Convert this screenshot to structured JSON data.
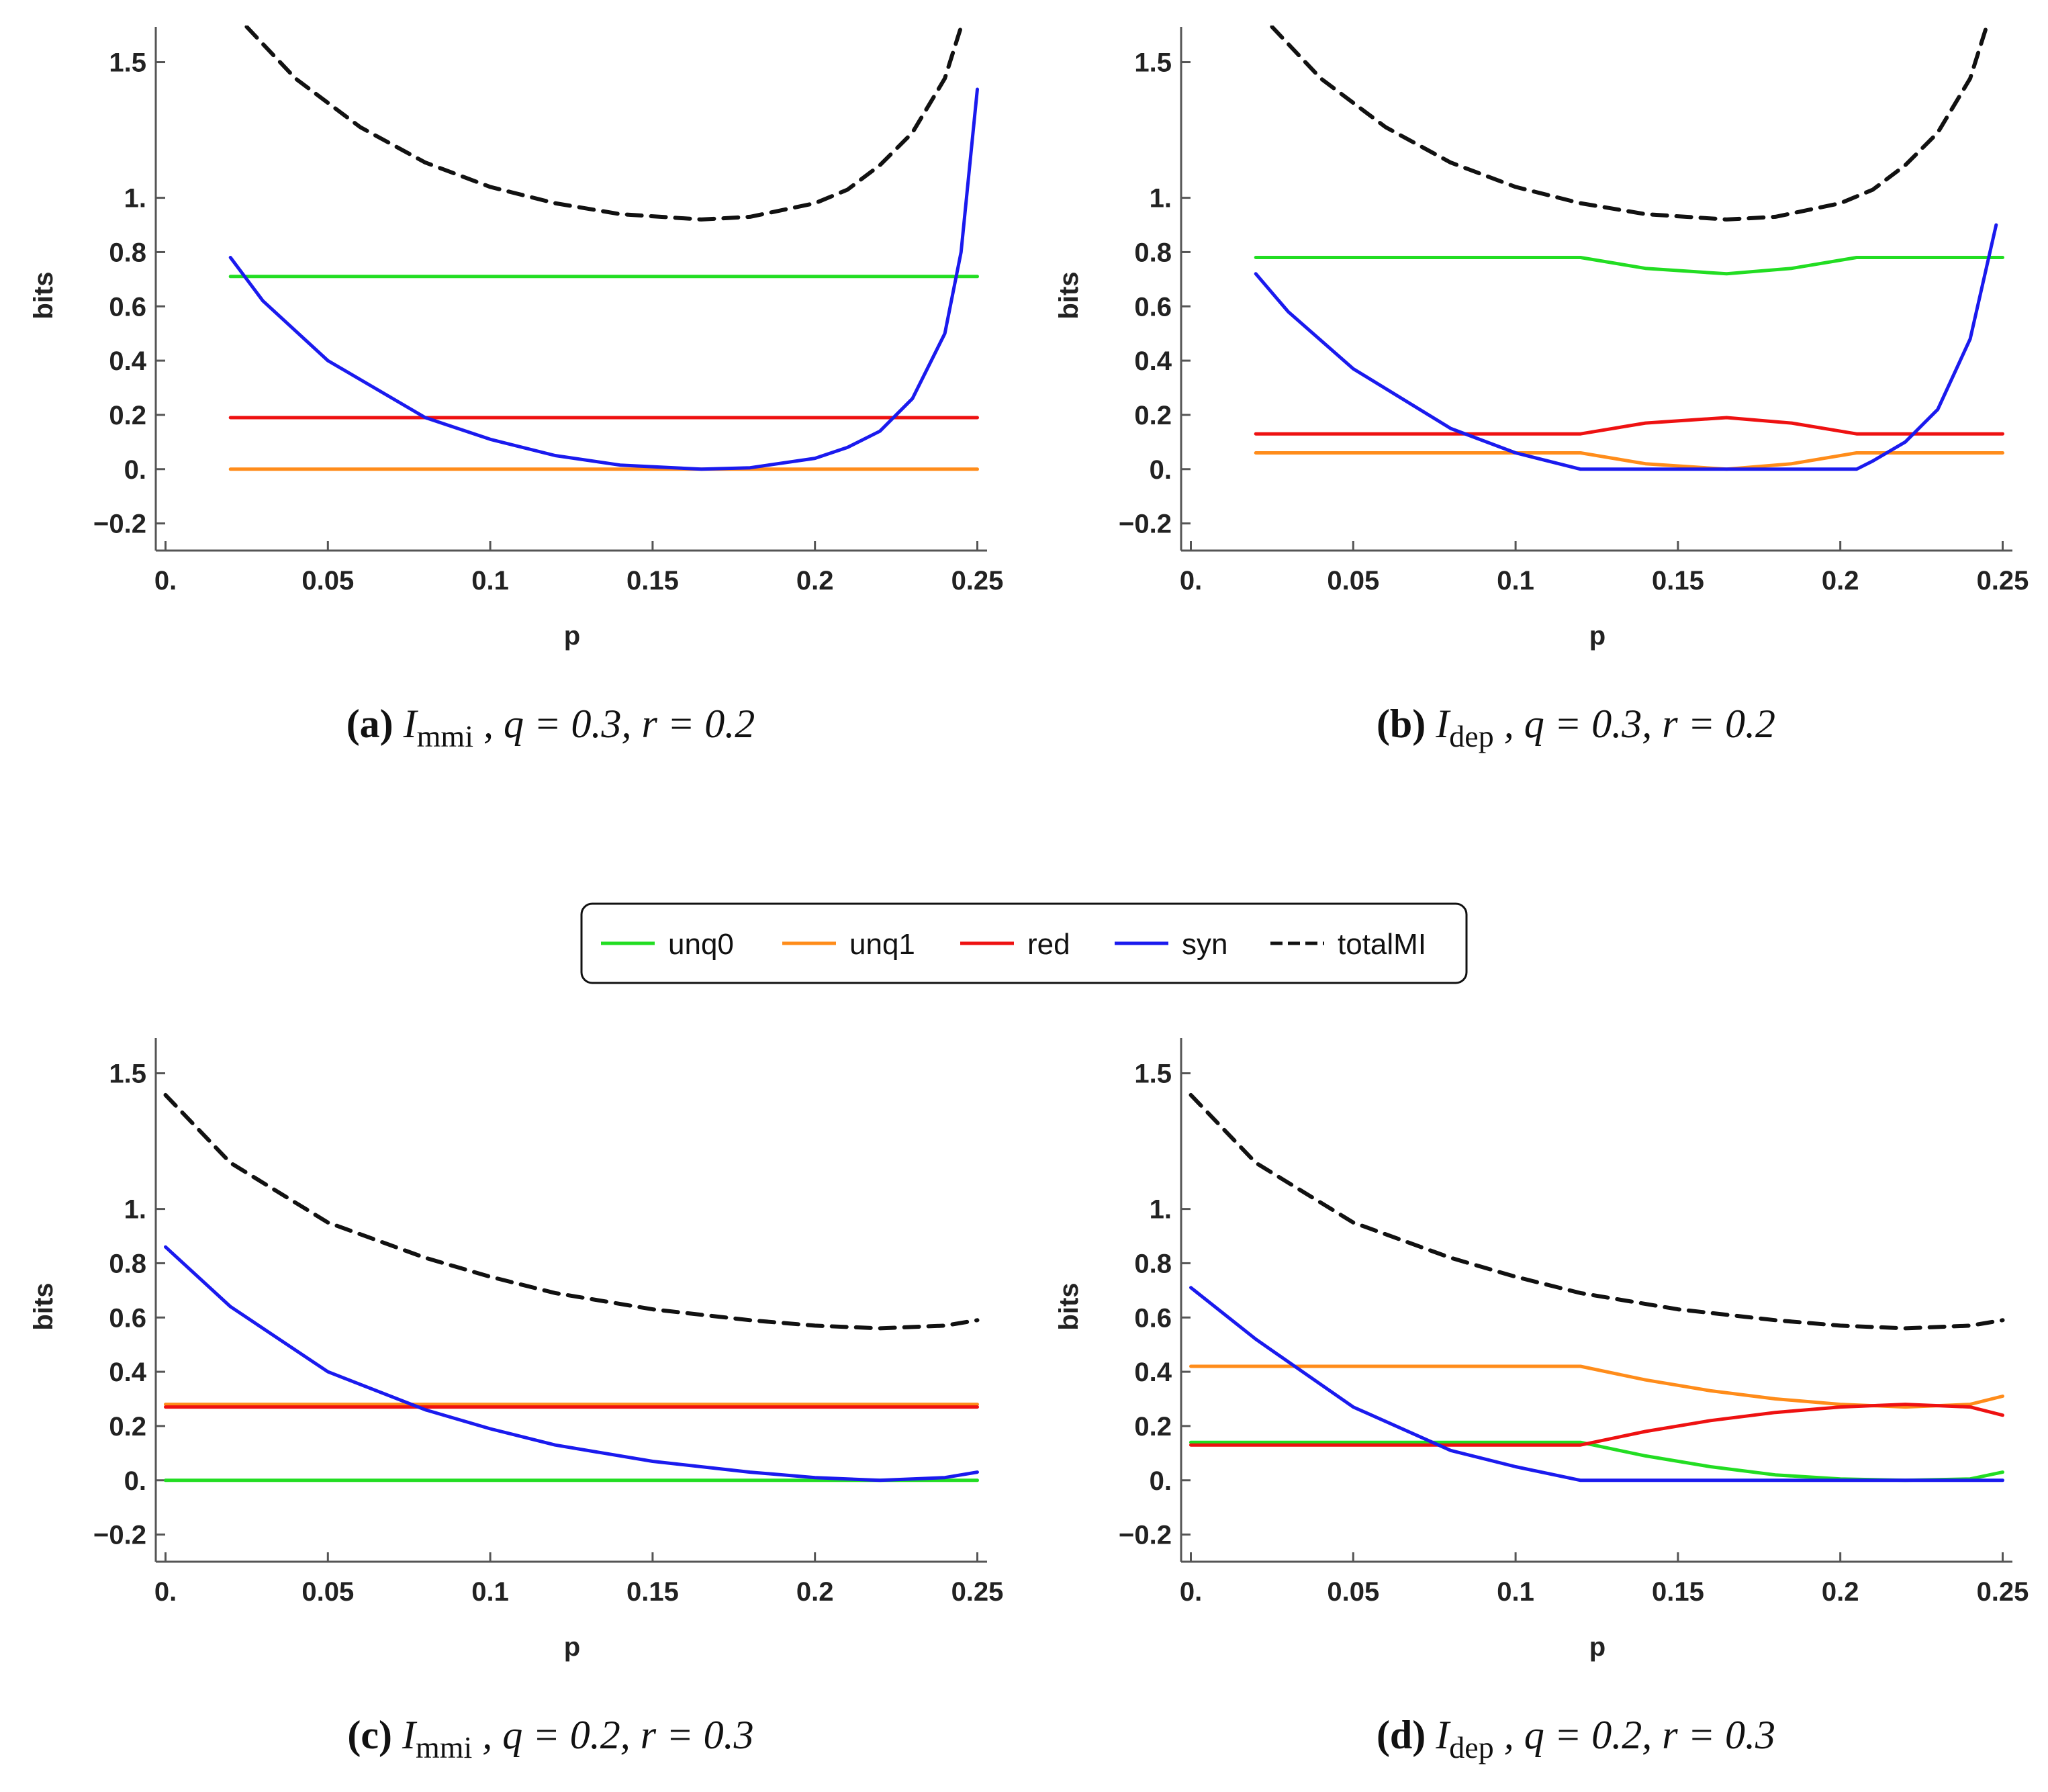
{
  "legend": [
    {
      "key": "unq0",
      "label": "unq0",
      "color": "#22dd22",
      "dash": false
    },
    {
      "key": "unq1",
      "label": "unq1",
      "color": "#ff8c1a",
      "dash": false
    },
    {
      "key": "red",
      "label": "red",
      "color": "#ee1111",
      "dash": false
    },
    {
      "key": "syn",
      "label": "syn",
      "color": "#1a1aee",
      "dash": false
    },
    {
      "key": "totalMI",
      "label": "totalMI",
      "color": "#111111",
      "dash": true
    }
  ],
  "chart_data": [
    {
      "id": "a",
      "type": "line",
      "caption": {
        "letter": "(a)",
        "measure": "I",
        "sub": "mmi",
        "params": " , q = 0.3, r = 0.2"
      },
      "xlabel": "p",
      "ylabel": "bits",
      "xlim": [
        -0.003,
        0.253
      ],
      "ylim": [
        -0.3,
        1.63
      ],
      "xticks": [
        {
          "v": 0,
          "label": "0."
        },
        {
          "v": 0.05,
          "label": "0.05"
        },
        {
          "v": 0.1,
          "label": "0.1"
        },
        {
          "v": 0.15,
          "label": "0.15"
        },
        {
          "v": 0.2,
          "label": "0.2"
        },
        {
          "v": 0.25,
          "label": "0.25"
        }
      ],
      "yticks": [
        {
          "v": -0.2,
          "label": "−0.2"
        },
        {
          "v": 0,
          "label": "0."
        },
        {
          "v": 0.2,
          "label": "0.2"
        },
        {
          "v": 0.4,
          "label": "0.4"
        },
        {
          "v": 0.6,
          "label": "0.6"
        },
        {
          "v": 0.8,
          "label": "0.8"
        },
        {
          "v": 1.0,
          "label": "1."
        },
        {
          "v": 1.5,
          "label": "1.5"
        }
      ],
      "series": [
        {
          "name": "unq0",
          "x": [
            0.02,
            0.25
          ],
          "y": [
            0.71,
            0.71
          ]
        },
        {
          "name": "unq1",
          "x": [
            0.02,
            0.25
          ],
          "y": [
            0.0,
            0.0
          ]
        },
        {
          "name": "red",
          "x": [
            0.02,
            0.25
          ],
          "y": [
            0.19,
            0.19
          ]
        },
        {
          "name": "syn",
          "x": [
            0.02,
            0.03,
            0.05,
            0.08,
            0.1,
            0.12,
            0.14,
            0.165,
            0.18,
            0.2,
            0.21,
            0.22,
            0.23,
            0.24,
            0.245,
            0.25
          ],
          "y": [
            0.78,
            0.62,
            0.4,
            0.19,
            0.11,
            0.05,
            0.015,
            0.0,
            0.005,
            0.04,
            0.08,
            0.14,
            0.26,
            0.5,
            0.8,
            1.4
          ]
        },
        {
          "name": "totalMI",
          "x": [
            0.025,
            0.04,
            0.06,
            0.08,
            0.1,
            0.12,
            0.14,
            0.165,
            0.18,
            0.2,
            0.21,
            0.22,
            0.23,
            0.24,
            0.245
          ],
          "y": [
            1.63,
            1.44,
            1.26,
            1.13,
            1.04,
            0.98,
            0.94,
            0.92,
            0.93,
            0.98,
            1.03,
            1.12,
            1.24,
            1.44,
            1.63
          ]
        }
      ]
    },
    {
      "id": "b",
      "type": "line",
      "caption": {
        "letter": "(b)",
        "measure": "I",
        "sub": "dep",
        "params": " , q = 0.3, r = 0.2"
      },
      "xlabel": "p",
      "ylabel": "bits",
      "xlim": [
        -0.003,
        0.253
      ],
      "ylim": [
        -0.3,
        1.63
      ],
      "xticks": [
        {
          "v": 0,
          "label": "0."
        },
        {
          "v": 0.05,
          "label": "0.05"
        },
        {
          "v": 0.1,
          "label": "0.1"
        },
        {
          "v": 0.15,
          "label": "0.15"
        },
        {
          "v": 0.2,
          "label": "0.2"
        },
        {
          "v": 0.25,
          "label": "0.25"
        }
      ],
      "yticks": [
        {
          "v": -0.2,
          "label": "−0.2"
        },
        {
          "v": 0,
          "label": "0."
        },
        {
          "v": 0.2,
          "label": "0.2"
        },
        {
          "v": 0.4,
          "label": "0.4"
        },
        {
          "v": 0.6,
          "label": "0.6"
        },
        {
          "v": 0.8,
          "label": "0.8"
        },
        {
          "v": 1.0,
          "label": "1."
        },
        {
          "v": 1.5,
          "label": "1.5"
        }
      ],
      "series": [
        {
          "name": "unq0",
          "x": [
            0.02,
            0.12,
            0.14,
            0.165,
            0.185,
            0.205,
            0.25
          ],
          "y": [
            0.78,
            0.78,
            0.74,
            0.72,
            0.74,
            0.78,
            0.78
          ]
        },
        {
          "name": "unq1",
          "x": [
            0.02,
            0.12,
            0.14,
            0.165,
            0.185,
            0.205,
            0.25
          ],
          "y": [
            0.06,
            0.06,
            0.02,
            0.0,
            0.02,
            0.06,
            0.06
          ]
        },
        {
          "name": "red",
          "x": [
            0.02,
            0.12,
            0.14,
            0.165,
            0.185,
            0.205,
            0.25
          ],
          "y": [
            0.13,
            0.13,
            0.17,
            0.19,
            0.17,
            0.13,
            0.13
          ]
        },
        {
          "name": "syn",
          "x": [
            0.02,
            0.03,
            0.05,
            0.08,
            0.1,
            0.12,
            0.205,
            0.21,
            0.22,
            0.23,
            0.24,
            0.248
          ],
          "y": [
            0.72,
            0.58,
            0.37,
            0.15,
            0.06,
            0.0,
            0.0,
            0.03,
            0.1,
            0.22,
            0.48,
            0.9
          ]
        },
        {
          "name": "totalMI",
          "x": [
            0.025,
            0.04,
            0.06,
            0.08,
            0.1,
            0.12,
            0.14,
            0.165,
            0.18,
            0.2,
            0.21,
            0.22,
            0.23,
            0.24,
            0.245
          ],
          "y": [
            1.63,
            1.44,
            1.26,
            1.13,
            1.04,
            0.98,
            0.94,
            0.92,
            0.93,
            0.98,
            1.03,
            1.12,
            1.24,
            1.44,
            1.63
          ]
        }
      ]
    },
    {
      "id": "c",
      "type": "line",
      "caption": {
        "letter": "(c)",
        "measure": "I",
        "sub": "mmi",
        "params": " , q = 0.2, r = 0.3"
      },
      "xlabel": "p",
      "ylabel": "bits",
      "xlim": [
        -0.003,
        0.253
      ],
      "ylim": [
        -0.3,
        1.63
      ],
      "xticks": [
        {
          "v": 0,
          "label": "0."
        },
        {
          "v": 0.05,
          "label": "0.05"
        },
        {
          "v": 0.1,
          "label": "0.1"
        },
        {
          "v": 0.15,
          "label": "0.15"
        },
        {
          "v": 0.2,
          "label": "0.2"
        },
        {
          "v": 0.25,
          "label": "0.25"
        }
      ],
      "yticks": [
        {
          "v": -0.2,
          "label": "−0.2"
        },
        {
          "v": 0,
          "label": "0."
        },
        {
          "v": 0.2,
          "label": "0.2"
        },
        {
          "v": 0.4,
          "label": "0.4"
        },
        {
          "v": 0.6,
          "label": "0.6"
        },
        {
          "v": 0.8,
          "label": "0.8"
        },
        {
          "v": 1.0,
          "label": "1."
        },
        {
          "v": 1.5,
          "label": "1.5"
        }
      ],
      "series": [
        {
          "name": "unq0",
          "x": [
            0.0,
            0.25
          ],
          "y": [
            0.0,
            0.0
          ]
        },
        {
          "name": "unq1",
          "x": [
            0.0,
            0.25
          ],
          "y": [
            0.28,
            0.28
          ]
        },
        {
          "name": "red",
          "x": [
            0.0,
            0.25
          ],
          "y": [
            0.27,
            0.27
          ]
        },
        {
          "name": "syn",
          "x": [
            0.0,
            0.02,
            0.05,
            0.08,
            0.1,
            0.12,
            0.15,
            0.18,
            0.2,
            0.22,
            0.24,
            0.25
          ],
          "y": [
            0.86,
            0.64,
            0.4,
            0.26,
            0.19,
            0.13,
            0.07,
            0.03,
            0.01,
            0.0,
            0.01,
            0.03
          ]
        },
        {
          "name": "totalMI",
          "x": [
            0.0,
            0.02,
            0.05,
            0.08,
            0.1,
            0.12,
            0.15,
            0.18,
            0.2,
            0.22,
            0.24,
            0.25
          ],
          "y": [
            1.42,
            1.17,
            0.95,
            0.82,
            0.75,
            0.69,
            0.63,
            0.59,
            0.57,
            0.56,
            0.57,
            0.59
          ]
        }
      ]
    },
    {
      "id": "d",
      "type": "line",
      "caption": {
        "letter": "(d)",
        "measure": "I",
        "sub": "dep",
        "params": " , q = 0.2, r = 0.3"
      },
      "xlabel": "p",
      "ylabel": "bits",
      "xlim": [
        -0.003,
        0.253
      ],
      "ylim": [
        -0.3,
        1.63
      ],
      "xticks": [
        {
          "v": 0,
          "label": "0."
        },
        {
          "v": 0.05,
          "label": "0.05"
        },
        {
          "v": 0.1,
          "label": "0.1"
        },
        {
          "v": 0.15,
          "label": "0.15"
        },
        {
          "v": 0.2,
          "label": "0.2"
        },
        {
          "v": 0.25,
          "label": "0.25"
        }
      ],
      "yticks": [
        {
          "v": -0.2,
          "label": "−0.2"
        },
        {
          "v": 0,
          "label": "0."
        },
        {
          "v": 0.2,
          "label": "0.2"
        },
        {
          "v": 0.4,
          "label": "0.4"
        },
        {
          "v": 0.6,
          "label": "0.6"
        },
        {
          "v": 0.8,
          "label": "0.8"
        },
        {
          "v": 1.0,
          "label": "1."
        },
        {
          "v": 1.5,
          "label": "1.5"
        }
      ],
      "series": [
        {
          "name": "unq0",
          "x": [
            0.0,
            0.12,
            0.14,
            0.16,
            0.18,
            0.2,
            0.22,
            0.24,
            0.25
          ],
          "y": [
            0.14,
            0.14,
            0.09,
            0.05,
            0.02,
            0.005,
            0.0,
            0.005,
            0.03
          ]
        },
        {
          "name": "unq1",
          "x": [
            0.0,
            0.12,
            0.14,
            0.16,
            0.18,
            0.2,
            0.22,
            0.24,
            0.25
          ],
          "y": [
            0.42,
            0.42,
            0.37,
            0.33,
            0.3,
            0.28,
            0.27,
            0.28,
            0.31
          ]
        },
        {
          "name": "red",
          "x": [
            0.0,
            0.12,
            0.14,
            0.16,
            0.18,
            0.2,
            0.22,
            0.24,
            0.25
          ],
          "y": [
            0.13,
            0.13,
            0.18,
            0.22,
            0.25,
            0.27,
            0.28,
            0.27,
            0.24
          ]
        },
        {
          "name": "syn",
          "x": [
            0.0,
            0.02,
            0.05,
            0.08,
            0.1,
            0.12,
            0.25
          ],
          "y": [
            0.71,
            0.52,
            0.27,
            0.11,
            0.05,
            0.0,
            0.0
          ]
        },
        {
          "name": "totalMI",
          "x": [
            0.0,
            0.02,
            0.05,
            0.08,
            0.1,
            0.12,
            0.15,
            0.18,
            0.2,
            0.22,
            0.24,
            0.25
          ],
          "y": [
            1.42,
            1.17,
            0.95,
            0.82,
            0.75,
            0.69,
            0.63,
            0.59,
            0.57,
            0.56,
            0.57,
            0.59
          ]
        }
      ]
    }
  ]
}
